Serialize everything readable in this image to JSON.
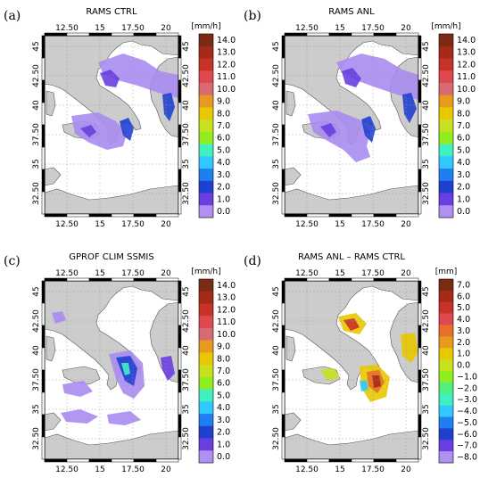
{
  "figure": {
    "panels": [
      {
        "label": "(a)",
        "title": "RAMS CTRL",
        "unit": "[mm/h]",
        "colorbar": [
          "14.0",
          "13.0",
          "12.0",
          "11.0",
          "10.0",
          "9.0",
          "8.0",
          "7.0",
          "6.0",
          "5.0",
          "4.0",
          "3.0",
          "2.0",
          "1.0",
          "0.0"
        ],
        "palette": [
          "#7b2a14",
          "#a62a18",
          "#c73229",
          "#e0484f",
          "#d86a73",
          "#e89a20",
          "#e8c800",
          "#c8e020",
          "#90ee20",
          "#40f0c0",
          "#30c8ff",
          "#1f7ff0",
          "#2040d0",
          "#6a3ee0",
          "#b090f0"
        ]
      },
      {
        "label": "(b)",
        "title": "RAMS ANL",
        "unit": "[mm/h]",
        "colorbar": [
          "14.0",
          "13.0",
          "12.0",
          "11.0",
          "10.0",
          "9.0",
          "8.0",
          "7.0",
          "6.0",
          "5.0",
          "4.0",
          "3.0",
          "2.0",
          "1.0",
          "0.0"
        ],
        "palette": [
          "#7b2a14",
          "#a62a18",
          "#c73229",
          "#e0484f",
          "#d86a73",
          "#e89a20",
          "#e8c800",
          "#c8e020",
          "#90ee20",
          "#40f0c0",
          "#30c8ff",
          "#1f7ff0",
          "#2040d0",
          "#6a3ee0",
          "#b090f0"
        ]
      },
      {
        "label": "(c)",
        "title": "GPROF CLIM SSMIS",
        "unit": "[mm/h]",
        "colorbar": [
          "14.0",
          "13.0",
          "12.0",
          "11.0",
          "10.0",
          "9.0",
          "8.0",
          "7.0",
          "6.0",
          "5.0",
          "4.0",
          "3.0",
          "2.0",
          "1.0",
          "0.0"
        ],
        "palette": [
          "#7b2a14",
          "#a62a18",
          "#c73229",
          "#e0484f",
          "#d86a73",
          "#e89a20",
          "#e8c800",
          "#c8e020",
          "#90ee20",
          "#40f0c0",
          "#30c8ff",
          "#1f7ff0",
          "#2040d0",
          "#6a3ee0",
          "#b090f0"
        ]
      },
      {
        "label": "(d)",
        "title": "RAMS ANL – RAMS CTRL",
        "unit": "[mm]",
        "colorbar": [
          "7.0",
          "6.0",
          "5.0",
          "4.0",
          "3.0",
          "2.0",
          "1.0",
          "0.0",
          "−1.0",
          "−2.0",
          "−3.0",
          "−4.0",
          "−5.0",
          "−6.0",
          "−7.0",
          "−8.0"
        ],
        "palette": [
          "#7b2a14",
          "#a62a18",
          "#c73229",
          "#e0484f",
          "#e8702a",
          "#e89a20",
          "#e8c800",
          "#c8e020",
          "#90ee20",
          "#50f080",
          "#40f0c0",
          "#30c8ff",
          "#1f7ff0",
          "#2040d0",
          "#6a3ee0",
          "#b090f0"
        ]
      }
    ],
    "axes": {
      "lon_ticks": [
        "12.50",
        "15",
        "17.50",
        "20"
      ],
      "lat_ticks": [
        "45",
        "42.50",
        "40",
        "37.50",
        "35",
        "32.50"
      ]
    },
    "colors": {
      "land": "#cccccc",
      "sea": "#ffffff",
      "grid": "#999999"
    }
  }
}
